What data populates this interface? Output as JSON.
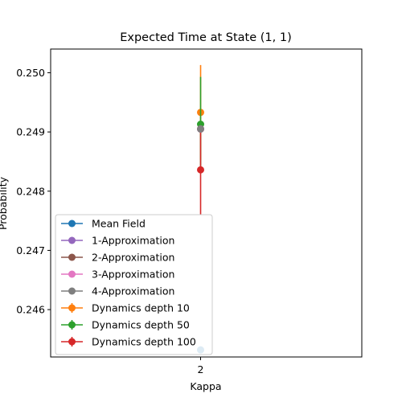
{
  "chart_data": {
    "type": "scatter",
    "title": "Expected Time at State (1, 1)",
    "xlabel": "Kappa",
    "ylabel": "Probability",
    "categories": [
      "2"
    ],
    "ylim": [
      0.2452,
      0.2504
    ],
    "yticks": [
      "0.246",
      "0.247",
      "0.248",
      "0.249",
      "0.250"
    ],
    "ytick_values": [
      0.246,
      0.247,
      0.248,
      0.249,
      0.25
    ],
    "legend_position": "lower-left",
    "grid": false,
    "series": [
      {
        "name": "Mean Field",
        "color": "#1f77b4",
        "values": [
          0.24532
        ],
        "error": null,
        "style": "line-marker"
      },
      {
        "name": "1-Approximation",
        "color": "#9467bd",
        "values": [
          0.24905
        ],
        "error": null,
        "style": "line-marker"
      },
      {
        "name": "2-Approximation",
        "color": "#8c564b",
        "values": [
          0.24905
        ],
        "error": null,
        "style": "line-marker"
      },
      {
        "name": "3-Approximation",
        "color": "#e377c2",
        "values": [
          0.24905
        ],
        "error": null,
        "style": "line-marker"
      },
      {
        "name": "4-Approximation",
        "color": "#7f7f7f",
        "values": [
          0.24905
        ],
        "error": null,
        "style": "line-marker"
      },
      {
        "name": "Dynamics depth 10",
        "color": "#ff7f0e",
        "values": [
          0.24933
        ],
        "error": [
          0.0008
        ],
        "style": "errorbar"
      },
      {
        "name": "Dynamics depth 50",
        "color": "#2ca02c",
        "values": [
          0.24913
        ],
        "error": [
          0.0008
        ],
        "style": "errorbar"
      },
      {
        "name": "Dynamics depth 100",
        "color": "#d62728",
        "values": [
          0.24836
        ],
        "error": [
          0.00075
        ],
        "style": "errorbar"
      }
    ]
  }
}
